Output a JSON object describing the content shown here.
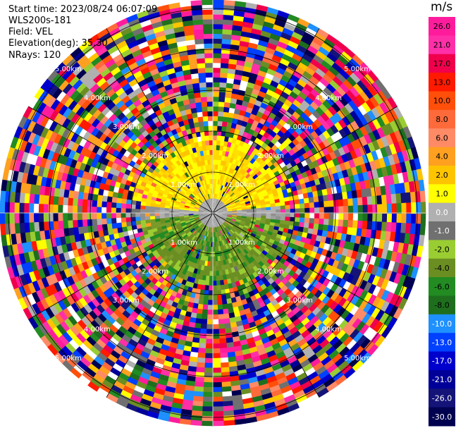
{
  "info": {
    "start_time": "Start time: 2023/08/24 06:07:09",
    "instrument": "WLS200s-181",
    "field": "Field: VEL",
    "elevation": "Elevation(deg): 35.30",
    "nrays": "NRays: 120"
  },
  "colorbar": {
    "title": "m/s",
    "labels": [
      "26.0",
      "21.0",
      "17.0",
      "13.0",
      "10.0",
      "8.0",
      "6.0",
      "4.0",
      "2.0",
      "1.0",
      "0.0",
      "-1.0",
      "-2.0",
      "-4.0",
      "-6.0",
      "-8.0",
      "-10.0",
      "-13.0",
      "-17.0",
      "-21.0",
      "-26.0",
      "-30.0"
    ],
    "colors": [
      "#ff1c9c",
      "#ff2fa8",
      "#f0004c",
      "#ff1a00",
      "#ff4f0a",
      "#ff6a3a",
      "#ff8a66",
      "#ffa020",
      "#ffc400",
      "#ffff00",
      "#b0b0b0",
      "#707070",
      "#9acd32",
      "#6b8e23",
      "#228b22",
      "#1e6e1e",
      "#1e90ff",
      "#0040ff",
      "#0000cd",
      "#000099",
      "#141478",
      "#000050"
    ]
  },
  "chart_data": {
    "type": "heatmap",
    "projection": "polar PPI",
    "field": "VEL",
    "units": "m/s",
    "nrays": 120,
    "ring_labels": [
      "1.00km",
      "2.00km",
      "3.00km",
      "4.00km",
      "5.00km"
    ],
    "inner_pattern": {
      "upper_half": "positive velocity (yellow, 2-6 m/s)",
      "lower_half": "negative velocity (olive/green, -2 to -6 m/s)",
      "center": "near-zero (gray)"
    },
    "outer_pattern": "noise (random colors across full scale)",
    "colorbar_range": [
      -30.0,
      26.0
    ]
  }
}
